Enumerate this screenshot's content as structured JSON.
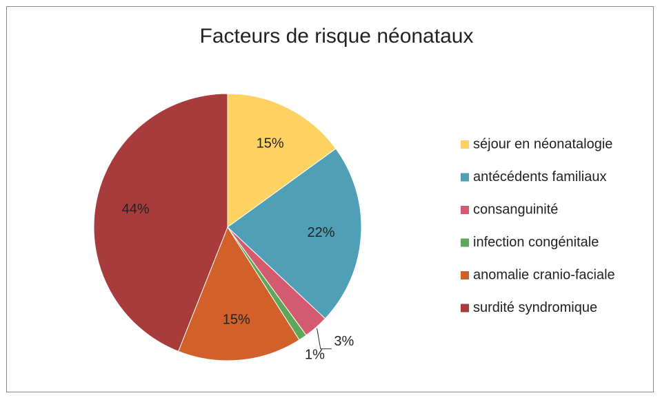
{
  "chart_data": {
    "type": "pie",
    "title": "Facteurs de risque néonataux",
    "categories": [
      "séjour en néonatalogie",
      "antécédents familiaux",
      "consanguinité",
      "infection congénitale",
      "anomalie cranio-faciale",
      "surdité syndromique"
    ],
    "values": [
      15,
      22,
      3,
      1,
      15,
      44
    ],
    "value_labels": [
      "15%",
      "22%",
      "3%",
      "1%",
      "15%",
      "44%"
    ],
    "colors": [
      "#FDD262",
      "#4FA0B6",
      "#D45B6F",
      "#5EA659",
      "#D2602A",
      "#A83C3C"
    ],
    "legend": "right"
  }
}
